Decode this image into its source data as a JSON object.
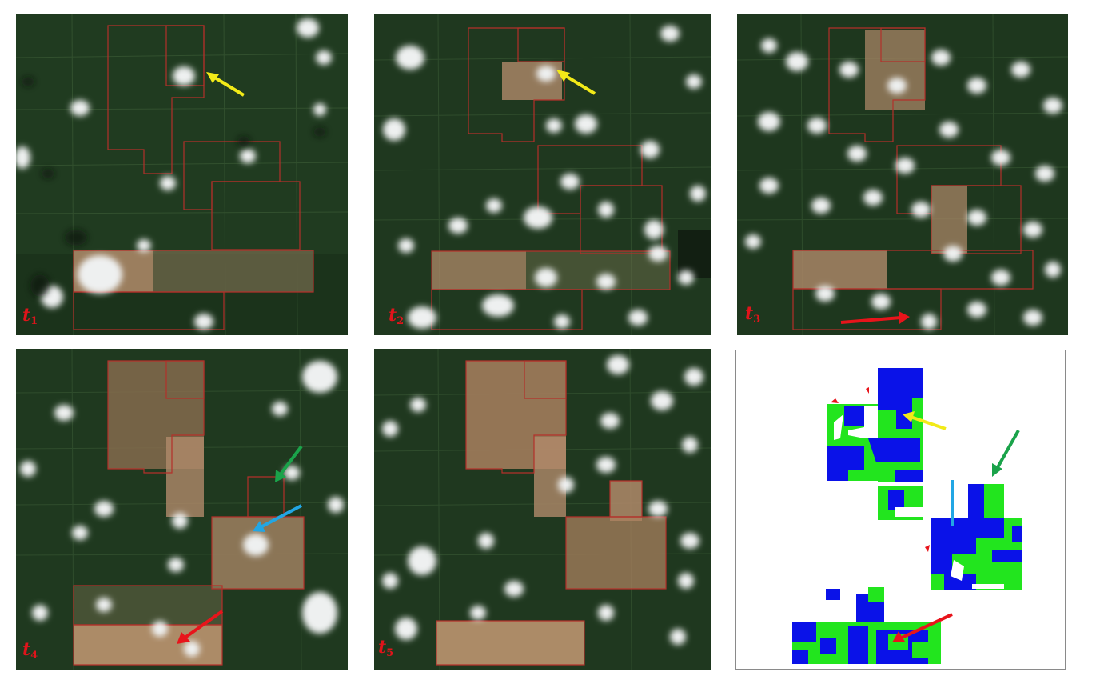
{
  "panels": [
    {
      "id": "t1",
      "label_main": "t",
      "label_sub": "1",
      "kind": "satellite-image"
    },
    {
      "id": "t2",
      "label_main": "t",
      "label_sub": "2",
      "kind": "satellite-image"
    },
    {
      "id": "t3",
      "label_main": "t",
      "label_sub": "3",
      "kind": "satellite-image"
    },
    {
      "id": "t4",
      "label_main": "t",
      "label_sub": "4",
      "kind": "satellite-image"
    },
    {
      "id": "t5",
      "label_main": "t",
      "label_sub": "5",
      "kind": "satellite-image"
    },
    {
      "id": "map",
      "label_main": "",
      "label_sub": "",
      "kind": "change-map"
    }
  ],
  "colors": {
    "vegetation": "#1f3a1f",
    "cleared": "#b08a6a",
    "boundary": "#b3302a",
    "cloud": "#eef0f0",
    "map_green": "#22e51e",
    "map_blue": "#0a12e8",
    "label": "#e0141b",
    "arrow_yellow": "#f2ea18",
    "arrow_green": "#1aa34a",
    "arrow_blue": "#22a6e4",
    "arrow_red": "#e8141b"
  }
}
